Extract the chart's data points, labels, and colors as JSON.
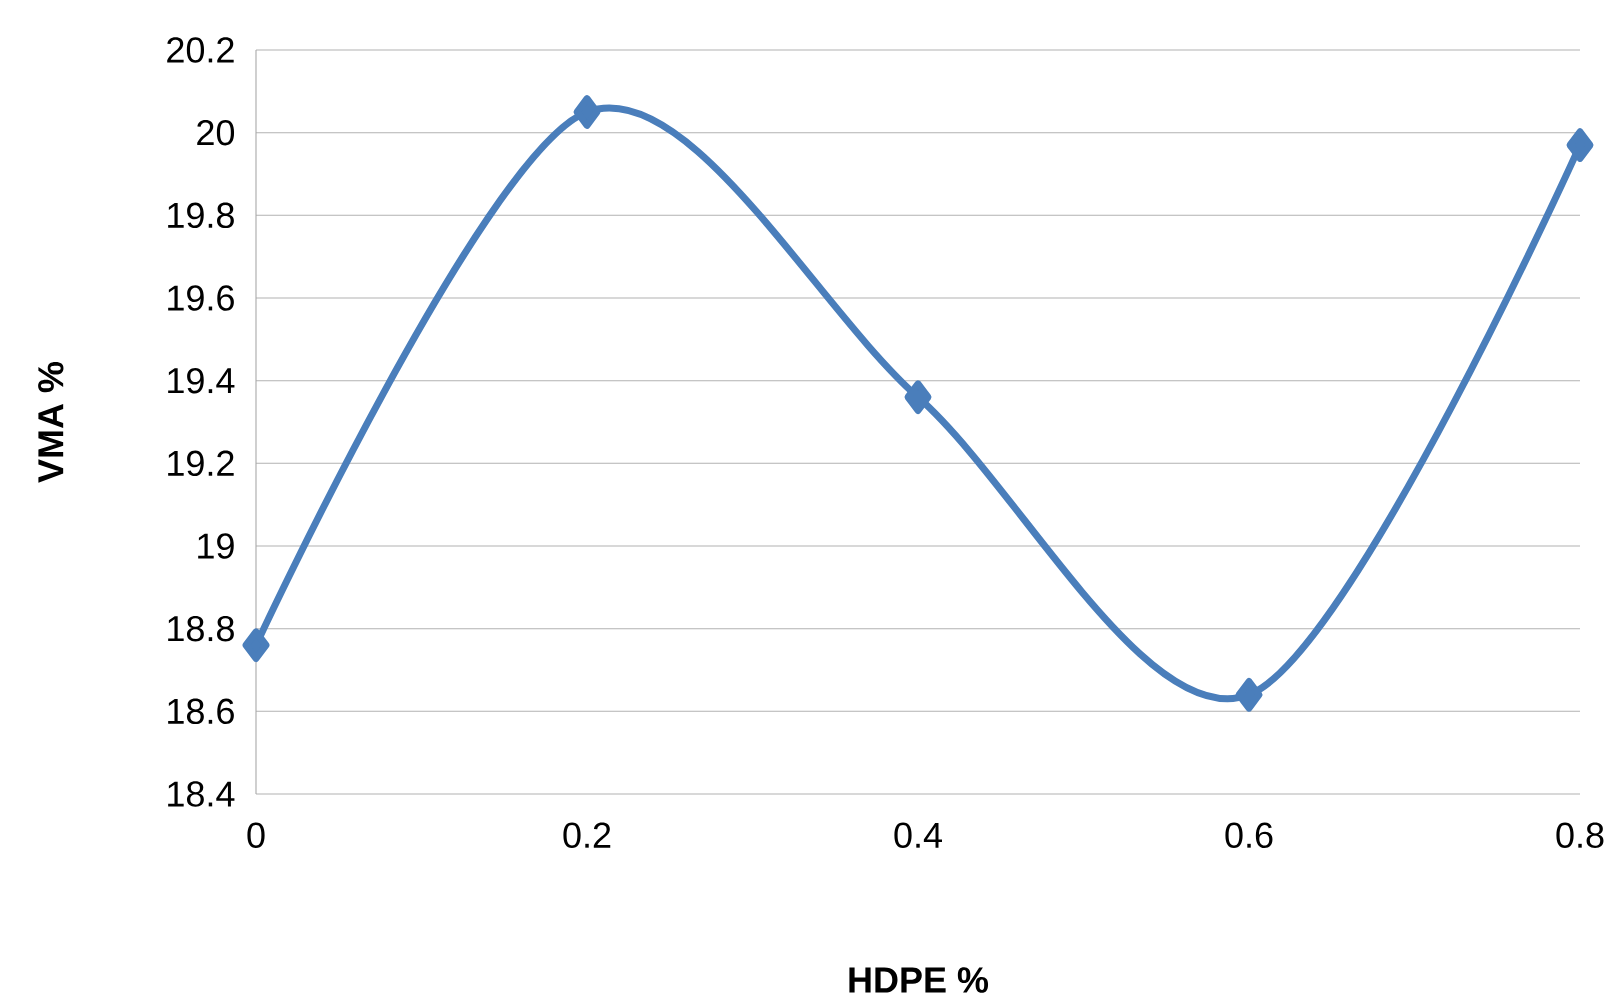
{
  "chart_data": {
    "type": "line",
    "xlabel": "HDPE %",
    "ylabel": "VMA %",
    "x": [
      0,
      0.2,
      0.4,
      0.6,
      0.8
    ],
    "series": [
      {
        "color": "#4a7ebb",
        "values": [
          18.76,
          20.05,
          19.36,
          18.64,
          19.97
        ]
      }
    ],
    "xlim": [
      0,
      0.8
    ],
    "xticks": [
      0,
      0.2,
      0.4,
      0.6,
      0.8
    ],
    "ylim": [
      18.4,
      20.2
    ],
    "yticks": [
      18.4,
      18.6,
      18.8,
      19,
      19.2,
      19.4,
      19.6,
      19.8,
      20,
      20.2
    ],
    "grid": "y",
    "marker": "diamond",
    "line_style": "solid"
  }
}
